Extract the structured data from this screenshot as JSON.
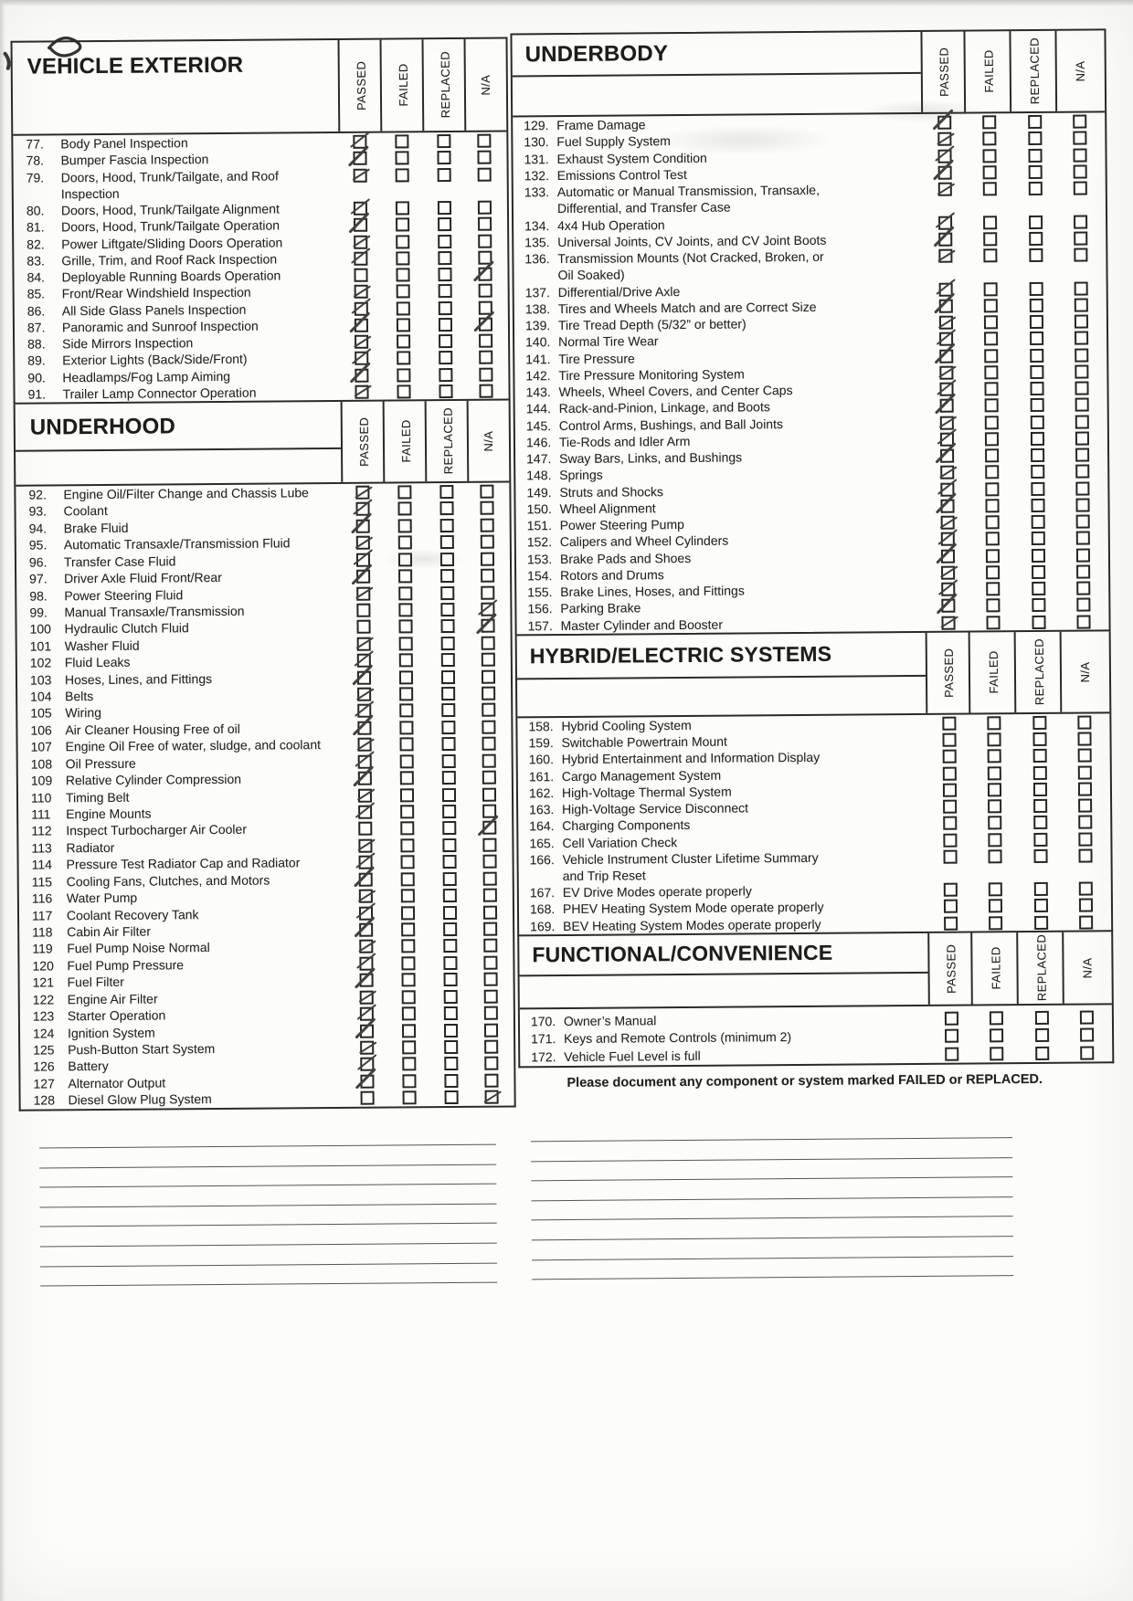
{
  "columns": [
    "PASSED",
    "FAILED",
    "REPLACED",
    "N/A"
  ],
  "note": "Please document any component or system marked FAILED or REPLACED.",
  "sections": [
    {
      "key": "ve",
      "title": "VEHICLE EXTERIOR",
      "items": [
        {
          "num": "77.",
          "text": "Body Panel Inspection",
          "marks": [
            "passed"
          ]
        },
        {
          "num": "78.",
          "text": "Bumper Fascia Inspection",
          "marks": [
            "passed"
          ]
        },
        {
          "num": "79.",
          "text": "Doors, Hood, Trunk/Tailgate, and Roof\nInspection",
          "marks": [
            "passed"
          ]
        },
        {
          "num": "80.",
          "text": "Doors, Hood, Trunk/Tailgate Alignment",
          "marks": [
            "passed"
          ]
        },
        {
          "num": "81.",
          "text": "Doors, Hood, Trunk/Tailgate Operation",
          "marks": [
            "passed"
          ]
        },
        {
          "num": "82.",
          "text": "Power Liftgate/Sliding Doors Operation",
          "marks": [
            "passed"
          ]
        },
        {
          "num": "83.",
          "text": "Grille, Trim, and Roof Rack Inspection",
          "marks": [
            "passed"
          ]
        },
        {
          "num": "84.",
          "text": "Deployable Running Boards Operation",
          "marks": [
            "na"
          ]
        },
        {
          "num": "85.",
          "text": "Front/Rear Windshield Inspection",
          "marks": [
            "passed"
          ]
        },
        {
          "num": "86.",
          "text": "All Side Glass Panels Inspection",
          "marks": [
            "passed"
          ]
        },
        {
          "num": "87.",
          "text": "Panoramic and Sunroof Inspection",
          "marks": [
            "passed",
            "na"
          ]
        },
        {
          "num": "88.",
          "text": "Side Mirrors Inspection",
          "marks": [
            "passed"
          ]
        },
        {
          "num": "89.",
          "text": "Exterior Lights (Back/Side/Front)",
          "marks": [
            "passed"
          ]
        },
        {
          "num": "90.",
          "text": "Headlamps/Fog Lamp Aiming",
          "marks": [
            "passed"
          ]
        },
        {
          "num": "91.",
          "text": "Trailer Lamp Connector Operation",
          "marks": [
            "passed"
          ]
        }
      ]
    },
    {
      "key": "uh",
      "title": "UNDERHOOD",
      "items": [
        {
          "num": "92.",
          "text": "Engine Oil/Filter Change and Chassis Lube",
          "marks": [
            "passed"
          ]
        },
        {
          "num": "93.",
          "text": "Coolant",
          "marks": [
            "passed"
          ]
        },
        {
          "num": "94.",
          "text": "Brake Fluid",
          "marks": [
            "passed"
          ]
        },
        {
          "num": "95.",
          "text": "Automatic Transaxle/Transmission Fluid",
          "marks": [
            "passed"
          ]
        },
        {
          "num": "96.",
          "text": "Transfer Case Fluid",
          "marks": [
            "passed"
          ]
        },
        {
          "num": "97.",
          "text": "Driver Axle Fluid Front/Rear",
          "marks": [
            "passed"
          ]
        },
        {
          "num": "98.",
          "text": "Power Steering Fluid",
          "marks": [
            "passed"
          ]
        },
        {
          "num": "99.",
          "text": "Manual Transaxle/Transmission",
          "marks": [
            "na"
          ]
        },
        {
          "num": "100",
          "text": "Hydraulic Clutch Fluid",
          "marks": [
            "na"
          ]
        },
        {
          "num": "101",
          "text": "Washer Fluid",
          "marks": [
            "passed"
          ]
        },
        {
          "num": "102",
          "text": "Fluid Leaks",
          "marks": [
            "passed"
          ]
        },
        {
          "num": "103",
          "text": "Hoses, Lines, and Fittings",
          "marks": [
            "passed"
          ]
        },
        {
          "num": "104",
          "text": "Belts",
          "marks": [
            "passed"
          ]
        },
        {
          "num": "105",
          "text": "Wiring",
          "marks": [
            "passed"
          ]
        },
        {
          "num": "106",
          "text": "Air Cleaner Housing Free of oil",
          "marks": [
            "passed"
          ]
        },
        {
          "num": "107",
          "text": "Engine Oil Free of water, sludge, and coolant",
          "marks": [
            "passed"
          ]
        },
        {
          "num": "108",
          "text": "Oil Pressure",
          "marks": [
            "passed"
          ]
        },
        {
          "num": "109",
          "text": "Relative Cylinder Compression",
          "marks": [
            "passed"
          ]
        },
        {
          "num": "110",
          "text": "Timing Belt",
          "marks": [
            "passed"
          ]
        },
        {
          "num": "111",
          "text": "Engine Mounts",
          "marks": [
            "passed"
          ]
        },
        {
          "num": "112",
          "text": "Inspect Turbocharger Air Cooler",
          "marks": [
            "na"
          ]
        },
        {
          "num": "113",
          "text": "Radiator",
          "marks": [
            "passed"
          ]
        },
        {
          "num": "114",
          "text": "Pressure Test Radiator Cap and Radiator",
          "marks": [
            "passed"
          ]
        },
        {
          "num": "115",
          "text": "Cooling Fans, Clutches, and Motors",
          "marks": [
            "passed"
          ]
        },
        {
          "num": "116",
          "text": "Water Pump",
          "marks": [
            "passed"
          ]
        },
        {
          "num": "117",
          "text": "Coolant Recovery Tank",
          "marks": [
            "passed"
          ]
        },
        {
          "num": "118",
          "text": "Cabin Air Filter",
          "marks": [
            "passed"
          ]
        },
        {
          "num": "119",
          "text": "Fuel Pump Noise Normal",
          "marks": [
            "passed"
          ]
        },
        {
          "num": "120",
          "text": "Fuel Pump Pressure",
          "marks": [
            "passed"
          ]
        },
        {
          "num": "121",
          "text": "Fuel Filter",
          "marks": [
            "passed"
          ]
        },
        {
          "num": "122",
          "text": "Engine Air Filter",
          "marks": [
            "passed"
          ]
        },
        {
          "num": "123",
          "text": "Starter Operation",
          "marks": [
            "passed"
          ]
        },
        {
          "num": "124",
          "text": "Ignition System",
          "marks": [
            "passed"
          ]
        },
        {
          "num": "125",
          "text": "Push-Button Start System",
          "marks": [
            "passed"
          ]
        },
        {
          "num": "126",
          "text": "Battery",
          "marks": [
            "passed"
          ]
        },
        {
          "num": "127",
          "text": "Alternator Output",
          "marks": [
            "passed"
          ]
        },
        {
          "num": "128",
          "text": "Diesel Glow Plug System",
          "marks": [
            "na"
          ]
        }
      ]
    },
    {
      "key": "ub",
      "title": "UNDERBODY",
      "items": [
        {
          "num": "129.",
          "text": "Frame Damage",
          "marks": [
            "passed"
          ]
        },
        {
          "num": "130.",
          "text": "Fuel Supply System",
          "marks": [
            "passed"
          ]
        },
        {
          "num": "131.",
          "text": "Exhaust System Condition",
          "marks": [
            "passed"
          ]
        },
        {
          "num": "132.",
          "text": "Emissions Control Test",
          "marks": [
            "passed"
          ]
        },
        {
          "num": "133.",
          "text": "Automatic or Manual Transmission, Transaxle,\nDifferential, and Transfer Case",
          "marks": [
            "passed"
          ]
        },
        {
          "num": "134.",
          "text": "4x4 Hub Operation",
          "marks": [
            "passed"
          ]
        },
        {
          "num": "135.",
          "text": "Universal Joints, CV Joints, and CV Joint Boots",
          "marks": [
            "passed"
          ]
        },
        {
          "num": "136.",
          "text": "Transmission Mounts (Not Cracked, Broken, or\nOil Soaked)",
          "marks": [
            "passed"
          ]
        },
        {
          "num": "137.",
          "text": "Differential/Drive Axle",
          "marks": [
            "passed"
          ]
        },
        {
          "num": "138.",
          "text": "Tires and Wheels Match and are Correct Size",
          "marks": [
            "passed"
          ]
        },
        {
          "num": "139.",
          "text": "Tire Tread Depth (5/32” or better)",
          "marks": [
            "passed"
          ]
        },
        {
          "num": "140.",
          "text": "Normal Tire Wear",
          "marks": [
            "passed"
          ]
        },
        {
          "num": "141.",
          "text": "Tire Pressure",
          "marks": [
            "passed"
          ]
        },
        {
          "num": "142.",
          "text": "Tire Pressure Monitoring System",
          "marks": [
            "passed"
          ]
        },
        {
          "num": "143.",
          "text": "Wheels, Wheel Covers, and Center Caps",
          "marks": [
            "passed"
          ]
        },
        {
          "num": "144.",
          "text": "Rack-and-Pinion, Linkage, and Boots",
          "marks": [
            "passed"
          ]
        },
        {
          "num": "145.",
          "text": "Control Arms, Bushings, and Ball Joints",
          "marks": [
            "passed"
          ]
        },
        {
          "num": "146.",
          "text": "Tie-Rods and Idler Arm",
          "marks": [
            "passed"
          ]
        },
        {
          "num": "147.",
          "text": "Sway Bars, Links, and Bushings",
          "marks": [
            "passed"
          ]
        },
        {
          "num": "148.",
          "text": "Springs",
          "marks": [
            "passed"
          ]
        },
        {
          "num": "149.",
          "text": "Struts and Shocks",
          "marks": [
            "passed"
          ]
        },
        {
          "num": "150.",
          "text": "Wheel Alignment",
          "marks": [
            "passed"
          ]
        },
        {
          "num": "151.",
          "text": "Power Steering Pump",
          "marks": [
            "passed"
          ]
        },
        {
          "num": "152.",
          "text": "Calipers and Wheel Cylinders",
          "marks": [
            "passed"
          ]
        },
        {
          "num": "153.",
          "text": "Brake Pads and Shoes",
          "marks": [
            "passed"
          ]
        },
        {
          "num": "154.",
          "text": "Rotors and Drums",
          "marks": [
            "passed"
          ]
        },
        {
          "num": "155.",
          "text": "Brake Lines, Hoses, and Fittings",
          "marks": [
            "passed"
          ]
        },
        {
          "num": "156.",
          "text": "Parking Brake",
          "marks": [
            "passed"
          ]
        },
        {
          "num": "157.",
          "text": "Master Cylinder and Booster",
          "marks": [
            "passed"
          ]
        }
      ]
    },
    {
      "key": "hy",
      "title": "HYBRID/ELECTRIC SYSTEMS",
      "items": [
        {
          "num": "158.",
          "text": "Hybrid Cooling System",
          "marks": []
        },
        {
          "num": "159.",
          "text": "Switchable Powertrain Mount",
          "marks": []
        },
        {
          "num": "160.",
          "text": "Hybrid Entertainment and Information Display",
          "marks": []
        },
        {
          "num": "161.",
          "text": "Cargo Management System",
          "marks": []
        },
        {
          "num": "162.",
          "text": "High-Voltage Thermal System",
          "marks": []
        },
        {
          "num": "163.",
          "text": "High-Voltage Service Disconnect",
          "marks": []
        },
        {
          "num": "164.",
          "text": "Charging Components",
          "marks": []
        },
        {
          "num": "165.",
          "text": "Cell Variation Check",
          "marks": []
        },
        {
          "num": "166.",
          "text": "Vehicle Instrument Cluster Lifetime Summary\nand Trip Reset",
          "marks": []
        },
        {
          "num": "167.",
          "text": "EV Drive Modes operate properly",
          "marks": []
        },
        {
          "num": "168.",
          "text": "PHEV Heating System Mode operate properly",
          "marks": []
        },
        {
          "num": "169.",
          "text": "BEV Heating System Modes operate properly",
          "marks": []
        }
      ]
    },
    {
      "key": "fc",
      "title": "FUNCTIONAL/CONVENIENCE",
      "items": [
        {
          "num": "170.",
          "text": "Owner’s Manual",
          "marks": []
        },
        {
          "num": "171.",
          "text": "Keys and Remote Controls (minimum 2)",
          "marks": []
        },
        {
          "num": "172.",
          "text": "Vehicle Fuel Level is full",
          "marks": []
        }
      ]
    }
  ]
}
